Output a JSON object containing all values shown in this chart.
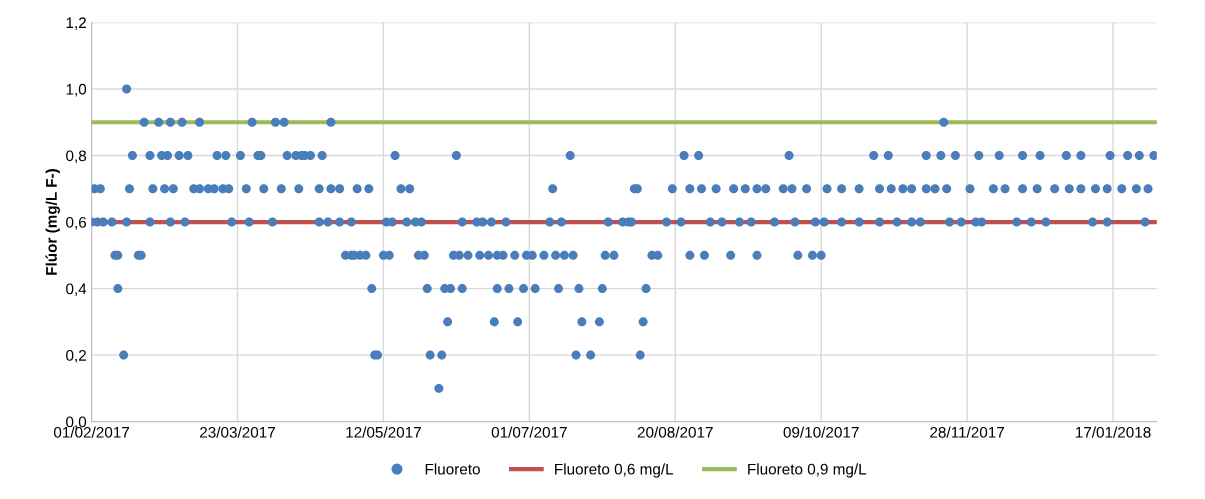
{
  "chart_data": {
    "type": "scatter",
    "ylabel": "Flúor (mg/L F-)",
    "xlim": [
      "2017-02-01",
      "2018-02-01"
    ],
    "xticks": [
      {
        "value": "2017-02-01",
        "label": "01/02/2017"
      },
      {
        "value": "2017-03-23",
        "label": "23/03/2017"
      },
      {
        "value": "2017-05-12",
        "label": "12/05/2017"
      },
      {
        "value": "2017-07-01",
        "label": "01/07/2017"
      },
      {
        "value": "2017-08-20",
        "label": "20/08/2017"
      },
      {
        "value": "2017-10-09",
        "label": "09/10/2017"
      },
      {
        "value": "2017-11-28",
        "label": "28/11/2017"
      },
      {
        "value": "2018-01-17",
        "label": "17/01/2018"
      }
    ],
    "ylim": [
      0,
      1.2
    ],
    "yticks": [
      {
        "value": 0,
        "label": "0,0"
      },
      {
        "value": 0.2,
        "label": "0,2"
      },
      {
        "value": 0.4,
        "label": "0,4"
      },
      {
        "value": 0.6,
        "label": "0,6"
      },
      {
        "value": 0.8,
        "label": "0,8"
      },
      {
        "value": 1.0,
        "label": "1,0"
      },
      {
        "value": 1.2,
        "label": "1,2"
      }
    ],
    "grid": true,
    "legend": "bottom",
    "marker": "circle",
    "series": [
      {
        "name": "Fluoreto",
        "color": "#4a7ebb",
        "x": [
          "2017-02-01",
          "2017-02-03",
          "2017-02-05",
          "2017-02-08",
          "2017-02-13",
          "2017-02-21",
          "2017-02-28",
          "2017-03-05",
          "2017-03-21",
          "2017-03-27",
          "2017-04-04",
          "2017-04-20",
          "2017-04-23",
          "2017-04-27",
          "2017-05-01",
          "2017-02-02",
          "2017-02-04",
          "2017-02-14",
          "2017-02-22",
          "2017-02-26",
          "2017-03-01",
          "2017-03-08",
          "2017-03-10",
          "2017-03-13",
          "2017-03-15",
          "2017-03-18",
          "2017-03-20",
          "2017-03-26",
          "2017-04-01",
          "2017-04-07",
          "2017-04-13",
          "2017-04-20",
          "2017-04-24",
          "2017-04-27",
          "2017-05-03",
          "2017-02-15",
          "2017-02-21",
          "2017-02-25",
          "2017-02-27",
          "2017-03-03",
          "2017-03-06",
          "2017-03-16",
          "2017-03-19",
          "2017-03-24",
          "2017-03-30",
          "2017-03-31",
          "2017-04-09",
          "2017-04-12",
          "2017-04-14",
          "2017-04-15",
          "2017-04-17",
          "2017-04-21",
          "2017-02-19",
          "2017-02-24",
          "2017-02-28",
          "2017-03-04",
          "2017-03-10",
          "2017-03-28",
          "2017-04-05",
          "2017-04-08",
          "2017-04-24",
          "2017-02-13",
          "2017-02-09",
          "2017-02-10",
          "2017-02-17",
          "2017-02-18",
          "2017-04-29",
          "2017-05-01",
          "2017-05-02",
          "2017-05-04",
          "2017-05-06",
          "2017-02-10",
          "2017-02-12",
          "2017-05-16",
          "2017-06-06",
          "2017-07-15",
          "2017-05-07",
          "2017-05-18",
          "2017-05-21",
          "2017-07-09",
          "2017-08-06",
          "2017-05-13",
          "2017-05-15",
          "2017-05-20",
          "2017-05-23",
          "2017-05-25",
          "2017-06-08",
          "2017-06-13",
          "2017-06-15",
          "2017-06-18",
          "2017-06-23",
          "2017-07-08",
          "2017-07-12",
          "2017-07-28",
          "2017-08-02",
          "2017-08-05",
          "2017-05-12",
          "2017-05-14",
          "2017-05-24",
          "2017-05-26",
          "2017-06-05",
          "2017-06-07",
          "2017-06-10",
          "2017-06-14",
          "2017-06-17",
          "2017-06-20",
          "2017-06-22",
          "2017-06-26",
          "2017-06-30",
          "2017-07-02",
          "2017-07-06",
          "2017-07-10",
          "2017-07-13",
          "2017-07-16",
          "2017-07-27",
          "2017-07-30",
          "2017-05-08",
          "2017-05-27",
          "2017-06-02",
          "2017-06-04",
          "2017-06-08",
          "2017-06-20",
          "2017-06-24",
          "2017-06-29",
          "2017-07-03",
          "2017-07-11",
          "2017-07-18",
          "2017-07-26",
          "2017-06-03",
          "2017-06-19",
          "2017-06-27",
          "2017-07-19",
          "2017-07-25",
          "2017-05-09",
          "2017-05-10",
          "2017-05-28",
          "2017-06-01",
          "2017-07-17",
          "2017-07-22",
          "2017-05-31",
          "2017-08-08",
          "2017-08-09",
          "2017-08-10",
          "2017-08-12",
          "2017-08-14",
          "2017-08-25",
          "2017-08-30",
          "2017-09-08",
          "2017-09-17",
          "2017-10-01",
          "2017-10-06",
          "2017-10-09",
          "2017-08-04",
          "2017-08-17",
          "2017-08-22",
          "2017-09-01",
          "2017-09-05",
          "2017-09-11",
          "2017-09-15",
          "2017-09-23",
          "2017-09-30",
          "2017-10-07",
          "2017-10-10",
          "2017-10-16",
          "2017-10-22",
          "2017-10-29",
          "2017-11-04",
          "2017-08-07",
          "2017-08-19",
          "2017-08-25",
          "2017-08-29",
          "2017-09-03",
          "2017-09-09",
          "2017-09-13",
          "2017-09-17",
          "2017-09-20",
          "2017-09-26",
          "2017-09-29",
          "2017-10-04",
          "2017-10-11",
          "2017-10-16",
          "2017-10-22",
          "2017-10-29",
          "2017-11-02",
          "2017-11-06",
          "2017-08-23",
          "2017-08-28",
          "2017-09-28",
          "2017-10-27",
          "2017-11-01",
          "2017-11-20",
          "2017-11-14",
          "2017-11-19",
          "2017-11-24",
          "2017-12-02",
          "2017-12-09",
          "2017-12-17",
          "2017-12-23",
          "2018-01-01",
          "2018-01-06",
          "2018-01-16",
          "2018-01-22",
          "2018-01-26",
          "2018-01-31",
          "2017-11-09",
          "2017-11-14",
          "2017-11-17",
          "2017-11-21",
          "2017-11-29",
          "2017-12-07",
          "2017-12-11",
          "2017-12-17",
          "2017-12-22",
          "2017-12-28",
          "2018-01-02",
          "2018-01-06",
          "2018-01-11",
          "2018-01-15",
          "2018-01-20",
          "2018-01-25",
          "2018-01-29",
          "2017-11-09",
          "2017-11-12",
          "2017-11-22",
          "2017-11-26",
          "2017-12-01",
          "2017-12-03",
          "2017-12-15",
          "2017-12-20",
          "2017-12-25",
          "2018-01-10",
          "2018-01-15",
          "2018-01-28"
        ],
        "values": [
          0.6,
          0.6,
          0.6,
          0.6,
          0.6,
          0.6,
          0.6,
          0.6,
          0.6,
          0.6,
          0.6,
          0.6,
          0.6,
          0.6,
          0.6,
          0.7,
          0.7,
          0.7,
          0.7,
          0.7,
          0.7,
          0.7,
          0.7,
          0.7,
          0.7,
          0.7,
          0.7,
          0.7,
          0.7,
          0.7,
          0.7,
          0.7,
          0.7,
          0.7,
          0.7,
          0.8,
          0.8,
          0.8,
          0.8,
          0.8,
          0.8,
          0.8,
          0.8,
          0.8,
          0.8,
          0.8,
          0.8,
          0.8,
          0.8,
          0.8,
          0.8,
          0.8,
          0.9,
          0.9,
          0.9,
          0.9,
          0.9,
          0.9,
          0.9,
          0.9,
          0.9,
          1.0,
          0.5,
          0.5,
          0.5,
          0.5,
          0.5,
          0.5,
          0.5,
          0.5,
          0.5,
          0.4,
          0.2,
          0.8,
          0.8,
          0.8,
          0.7,
          0.7,
          0.7,
          0.7,
          0.7,
          0.6,
          0.6,
          0.6,
          0.6,
          0.6,
          0.6,
          0.6,
          0.6,
          0.6,
          0.6,
          0.6,
          0.6,
          0.6,
          0.6,
          0.6,
          0.5,
          0.5,
          0.5,
          0.5,
          0.5,
          0.5,
          0.5,
          0.5,
          0.5,
          0.5,
          0.5,
          0.5,
          0.5,
          0.5,
          0.5,
          0.5,
          0.5,
          0.5,
          0.5,
          0.5,
          0.4,
          0.4,
          0.4,
          0.4,
          0.4,
          0.4,
          0.4,
          0.4,
          0.4,
          0.4,
          0.4,
          0.4,
          0.3,
          0.3,
          0.3,
          0.3,
          0.3,
          0.2,
          0.2,
          0.2,
          0.2,
          0.2,
          0.2,
          0.1,
          0.2,
          0.3,
          0.4,
          0.5,
          0.5,
          0.5,
          0.5,
          0.5,
          0.5,
          0.5,
          0.5,
          0.5,
          0.6,
          0.6,
          0.6,
          0.6,
          0.6,
          0.6,
          0.6,
          0.6,
          0.6,
          0.6,
          0.6,
          0.6,
          0.6,
          0.6,
          0.6,
          0.7,
          0.7,
          0.7,
          0.7,
          0.7,
          0.7,
          0.7,
          0.7,
          0.7,
          0.7,
          0.7,
          0.7,
          0.7,
          0.7,
          0.7,
          0.7,
          0.7,
          0.7,
          0.8,
          0.8,
          0.8,
          0.8,
          0.8,
          0.9,
          0.8,
          0.8,
          0.8,
          0.8,
          0.8,
          0.8,
          0.8,
          0.8,
          0.8,
          0.8,
          0.8,
          0.8,
          0.8,
          0.7,
          0.7,
          0.7,
          0.7,
          0.7,
          0.7,
          0.7,
          0.7,
          0.7,
          0.7,
          0.7,
          0.7,
          0.7,
          0.7,
          0.7,
          0.7,
          0.7,
          0.6,
          0.6,
          0.6,
          0.6,
          0.6,
          0.6,
          0.6,
          0.6,
          0.6,
          0.6,
          0.6,
          0.6
        ]
      }
    ],
    "ref_lines": [
      {
        "axis": "y",
        "value": 0.6,
        "label": "Fluoreto 0,6 mg/L",
        "color": "#c0504d"
      },
      {
        "axis": "y",
        "value": 0.9,
        "label": "Fluoreto 0,9 mg/L",
        "color": "#9bbb59"
      }
    ]
  }
}
